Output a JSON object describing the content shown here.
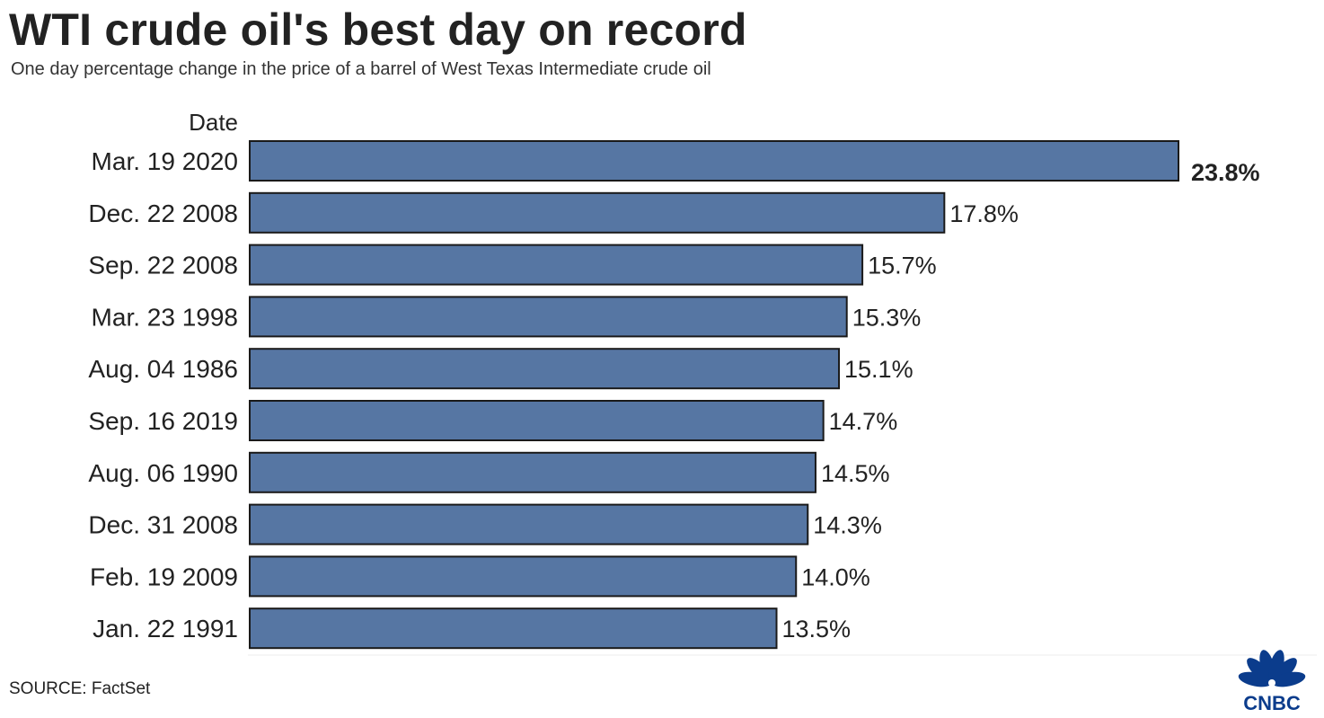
{
  "chart_data": {
    "type": "bar",
    "orientation": "horizontal",
    "title": "WTI crude oil's best day on record",
    "subtitle": "One day percentage change in the price of a barrel of West Texas Intermediate crude oil",
    "category_axis_label": "Date",
    "categories": [
      "Mar. 19 2020",
      "Dec. 22 2008",
      "Sep. 22 2008",
      "Mar. 23 1998",
      "Aug. 04 1986",
      "Sep. 16 2019",
      "Aug. 06 1990",
      "Dec. 31 2008",
      "Feb. 19 2009",
      "Jan. 22 1991"
    ],
    "values": [
      23.8,
      17.8,
      15.7,
      15.3,
      15.1,
      14.7,
      14.5,
      14.3,
      14.0,
      13.5
    ],
    "value_labels": [
      "23.8%",
      "17.8%",
      "15.7%",
      "15.3%",
      "15.1%",
      "14.7%",
      "14.5%",
      "14.3%",
      "14.0%",
      "13.5%"
    ],
    "xlim": [
      0,
      23.8
    ],
    "grid": false,
    "legend": "none",
    "bar_color": "#5676a3",
    "bar_outline_color": "#1a1a1a"
  },
  "source": "SOURCE: FactSet",
  "logo": {
    "text": "CNBC",
    "icon": "nbc-peacock-icon",
    "color": "#0b3c8c"
  }
}
